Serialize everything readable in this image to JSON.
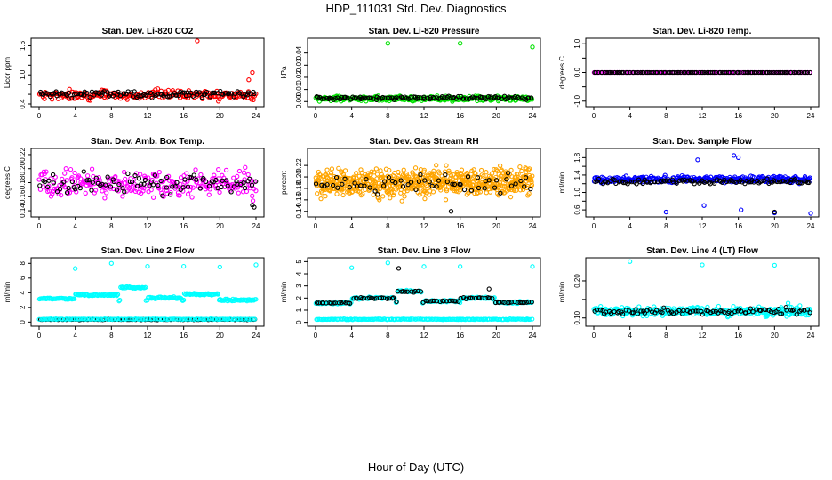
{
  "page": {
    "title": "HDP_111031  Std. Dev. Diagnostics",
    "xlabel": "Hour of Day (UTC)"
  },
  "colors": {
    "black": "#000000",
    "red": "#ff0000",
    "green": "#00e000",
    "magenta": "#ff00ff",
    "orange": "#ffa500",
    "blue": "#0000ff",
    "cyan": "#00ffff"
  },
  "chart_data": [
    {
      "type": "scatter",
      "title": "Stan. Dev. Li-820 CO2",
      "ylabel": "Licor ppm",
      "xlim": [
        0,
        24
      ],
      "ylim": [
        0.4,
        1.7
      ],
      "xticks": [
        0,
        4,
        8,
        12,
        16,
        20,
        24
      ],
      "yticks": [
        0.4,
        0.6,
        0.8,
        1.0,
        1.2,
        1.4,
        1.6
      ],
      "ytick_labels": [
        "0.4",
        "",
        "",
        "1.0",
        "",
        "",
        "1.6"
      ],
      "series": [
        {
          "color": "red",
          "mean": 0.58,
          "spread": 0.09,
          "seed": 11,
          "count": 230,
          "outliers": [
            [
              17.5,
              1.7
            ],
            [
              23.6,
              1.05
            ],
            [
              23.2,
              0.9
            ]
          ]
        },
        {
          "color": "black",
          "mean": 0.6,
          "spread": 0.06,
          "seed": 12,
          "count": 110,
          "outliers": []
        }
      ]
    },
    {
      "type": "scatter",
      "title": "Stan. Dev. Li-820 Pressure",
      "ylabel": "kPa",
      "xlim": [
        0,
        24
      ],
      "ylim": [
        -0.002,
        0.05
      ],
      "xticks": [
        0,
        4,
        8,
        12,
        16,
        20,
        24
      ],
      "yticks": [
        0.0,
        0.01,
        0.02,
        0.03,
        0.04
      ],
      "ytick_labels": [
        "0.00",
        "0.01",
        "0.02",
        "0.03",
        "0.04"
      ],
      "series": [
        {
          "color": "green",
          "mean": 0.0025,
          "spread": 0.0018,
          "seed": 21,
          "count": 320,
          "outliers": [
            [
              8.0,
              0.048
            ],
            [
              16.0,
              0.048
            ],
            [
              24.0,
              0.045
            ]
          ]
        },
        {
          "color": "black",
          "mean": 0.003,
          "spread": 0.0014,
          "seed": 22,
          "count": 110,
          "outliers": []
        }
      ]
    },
    {
      "type": "scatter",
      "title": "Stan. Dev. Li-820 Temp.",
      "ylabel": "degrees C",
      "xlim": [
        0,
        24
      ],
      "ylim": [
        -1.1,
        1.1
      ],
      "xticks": [
        0,
        4,
        8,
        12,
        16,
        20,
        24
      ],
      "yticks": [
        -1.0,
        -0.5,
        0.0,
        0.5,
        1.0
      ],
      "ytick_labels": [
        "-1.0",
        "",
        "0.0",
        "",
        "1.0"
      ],
      "series": [
        {
          "color": "magenta",
          "mean": 0.0,
          "spread": 0.0,
          "seed": 31,
          "count": 120,
          "outliers": []
        },
        {
          "color": "black",
          "mean": 0.0,
          "spread": 0.0,
          "seed": 32,
          "count": 110,
          "outliers": []
        }
      ]
    },
    {
      "type": "scatter",
      "title": "Stan. Dev. Amb. Box Temp.",
      "ylabel": "degrees C",
      "xlim": [
        0,
        24
      ],
      "ylim": [
        0.135,
        0.225
      ],
      "xticks": [
        0,
        4,
        8,
        12,
        16,
        20,
        24
      ],
      "yticks": [
        0.14,
        0.16,
        0.18,
        0.2,
        0.22
      ],
      "ytick_labels": [
        "0.14",
        "0.16",
        "0.18",
        "0.20",
        "0.22"
      ],
      "series": [
        {
          "color": "magenta",
          "mean": 0.178,
          "spread": 0.018,
          "seed": 41,
          "count": 260,
          "outliers": []
        },
        {
          "color": "black",
          "mean": 0.178,
          "spread": 0.013,
          "seed": 42,
          "count": 90,
          "outliers": [
            [
              23.8,
              0.145
            ],
            [
              23.6,
              0.148
            ]
          ]
        }
      ]
    },
    {
      "type": "scatter",
      "title": "Stan. Dev. Gas Stream RH",
      "ylabel": "percent",
      "xlim": [
        0,
        24
      ],
      "ylim": [
        0.135,
        0.245
      ],
      "xticks": [
        0,
        4,
        8,
        12,
        16,
        20,
        24
      ],
      "yticks": [
        0.14,
        0.16,
        0.18,
        0.2,
        0.22
      ],
      "ytick_labels": [
        "0.14",
        "0.16",
        "0.18",
        "0.20",
        "0.22"
      ],
      "series": [
        {
          "color": "orange",
          "mean": 0.19,
          "spread": 0.022,
          "seed": 51,
          "count": 650,
          "outliers": []
        },
        {
          "color": "black",
          "mean": 0.19,
          "spread": 0.016,
          "seed": 52,
          "count": 60,
          "outliers": [
            [
              15.0,
              0.14
            ]
          ]
        }
      ]
    },
    {
      "type": "scatter",
      "title": "Stan. Dev. Sample Flow",
      "ylabel": "ml/min",
      "xlim": [
        0,
        24
      ],
      "ylim": [
        0.5,
        1.95
      ],
      "xticks": [
        0,
        4,
        8,
        12,
        16,
        20,
        24
      ],
      "yticks": [
        0.6,
        0.8,
        1.0,
        1.2,
        1.4,
        1.6,
        1.8
      ],
      "ytick_labels": [
        "0.6",
        "",
        "1.0",
        "",
        "1.4",
        "",
        "1.8"
      ],
      "series": [
        {
          "color": "blue",
          "mean": 1.3,
          "spread": 0.07,
          "seed": 61,
          "count": 320,
          "outliers": [
            [
              8.0,
              0.55
            ],
            [
              16.3,
              0.6
            ],
            [
              24.0,
              0.52
            ],
            [
              15.5,
              1.85
            ],
            [
              16.0,
              1.8
            ],
            [
              11.5,
              1.75
            ],
            [
              20.0,
              0.53
            ],
            [
              12.2,
              0.7
            ]
          ]
        },
        {
          "color": "black",
          "mean": 1.25,
          "spread": 0.05,
          "seed": 62,
          "count": 110,
          "outliers": [
            [
              20.0,
              0.55
            ]
          ]
        }
      ]
    },
    {
      "type": "scatter",
      "title": "Stan. Dev. Line 2 Flow",
      "ylabel": "ml/min",
      "xlim": [
        0,
        24
      ],
      "ylim": [
        -0.2,
        8.4
      ],
      "xticks": [
        0,
        4,
        8,
        12,
        16,
        20,
        24
      ],
      "yticks": [
        0,
        2,
        4,
        6,
        8
      ],
      "ytick_labels": [
        "0",
        "2",
        "4",
        "6",
        "8"
      ],
      "series": [
        {
          "color": "cyan",
          "segments": [
            [
              0,
              4,
              3.2
            ],
            [
              4,
              8.8,
              3.7
            ],
            [
              9,
              11.8,
              4.7
            ],
            [
              12,
              15.8,
              3.3
            ],
            [
              16,
              19.8,
              3.8
            ],
            [
              20,
              24,
              3.0
            ]
          ],
          "spread": 0.12,
          "seed": 71,
          "count": 260,
          "outliers": [
            [
              4.0,
              7.3
            ],
            [
              8.0,
              8.0
            ],
            [
              12.0,
              7.6
            ],
            [
              16.0,
              7.6
            ],
            [
              20.0,
              7.5
            ],
            [
              24.0,
              7.8
            ]
          ]
        },
        {
          "color": "black",
          "mean": 0.35,
          "spread": 0.05,
          "seed": 72,
          "count": 110,
          "outliers": []
        },
        {
          "color": "cyan",
          "mean": 0.4,
          "spread": 0.04,
          "seed": 73,
          "count": 140,
          "outliers": []
        }
      ]
    },
    {
      "type": "scatter",
      "title": "Stan. Dev. Line 3 Flow",
      "ylabel": "ml/min",
      "xlim": [
        0,
        24
      ],
      "ylim": [
        -0.1,
        5.1
      ],
      "xticks": [
        0,
        4,
        8,
        12,
        16,
        20,
        24
      ],
      "yticks": [
        0,
        1,
        2,
        3,
        4,
        5
      ],
      "ytick_labels": [
        "0",
        "1",
        "2",
        "3",
        "4",
        "5"
      ],
      "series": [
        {
          "color": "cyan",
          "segments": [
            [
              0,
              4,
              1.6
            ],
            [
              4,
              8.8,
              2.0
            ],
            [
              9,
              11.8,
              2.55
            ],
            [
              12,
              15.8,
              1.75
            ],
            [
              16,
              19.8,
              2.0
            ],
            [
              20,
              24,
              1.65
            ]
          ],
          "spread": 0.08,
          "seed": 81,
          "count": 220,
          "outliers": [
            [
              4.0,
              4.5
            ],
            [
              8.0,
              4.9
            ],
            [
              12.0,
              4.6
            ],
            [
              16.0,
              4.6
            ],
            [
              24.0,
              4.6
            ]
          ]
        },
        {
          "color": "black",
          "segments": [
            [
              0,
              4,
              1.6
            ],
            [
              4,
              8.8,
              2.0
            ],
            [
              9,
              11.8,
              2.55
            ],
            [
              12,
              15.8,
              1.75
            ],
            [
              16,
              19.8,
              2.0
            ],
            [
              20,
              24,
              1.65
            ]
          ],
          "spread": 0.06,
          "seed": 82,
          "count": 90,
          "outliers": [
            [
              9.2,
              4.45
            ],
            [
              19.2,
              2.75
            ]
          ]
        },
        {
          "color": "cyan",
          "mean": 0.25,
          "spread": 0.03,
          "seed": 83,
          "count": 180,
          "outliers": []
        }
      ]
    },
    {
      "type": "scatter",
      "title": "Stan. Dev. Line 4 (LT) Flow",
      "ylabel": "ml/min",
      "xlim": [
        0,
        24
      ],
      "ylim": [
        0.085,
        0.255
      ],
      "xticks": [
        0,
        4,
        8,
        12,
        16,
        20,
        24
      ],
      "yticks": [
        0.1,
        0.15,
        0.2
      ],
      "ytick_labels": [
        "0.10",
        "",
        "0.20"
      ],
      "series": [
        {
          "color": "cyan",
          "mean": 0.118,
          "spread": 0.011,
          "seed": 91,
          "count": 330,
          "outliers": [
            [
              4.0,
              0.252
            ],
            [
              12.0,
              0.243
            ],
            [
              20.0,
              0.242
            ],
            [
              21.5,
              0.14
            ]
          ]
        },
        {
          "color": "black",
          "mean": 0.118,
          "spread": 0.008,
          "seed": 92,
          "count": 90,
          "outliers": []
        }
      ]
    }
  ]
}
